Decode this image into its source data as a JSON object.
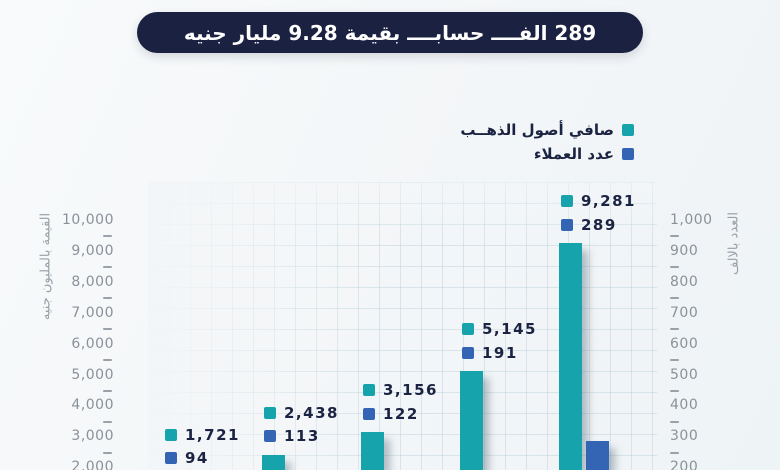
{
  "banner": {
    "title": "289 الفــــ حسابــــ بقيمة 9.28 مليار جنيه"
  },
  "legend": {
    "items": [
      {
        "label": "صافي أصول الذهــب",
        "color": "#17a3ac"
      },
      {
        "label": "عدد العملاء",
        "color": "#3465b5"
      }
    ]
  },
  "colors": {
    "teal": "#17a3ac",
    "blue": "#3465b5",
    "navy_banner": "#1b2140",
    "label_text": "#1b2342",
    "axis_text": "#8b9199",
    "background": "#f3f6f8"
  },
  "chart_data": {
    "type": "bar",
    "title": "289 الفــــ حسابــــ بقيمة 9.28 مليار جنيه",
    "series": [
      {
        "name": "صافي أصول الذهــب",
        "axis": "left",
        "color": "#17a3ac",
        "values": [
          1721,
          2438,
          3156,
          5145,
          9281
        ],
        "value_labels": [
          "1,721",
          "2,438",
          "3,156",
          "5,145",
          "9,281"
        ]
      },
      {
        "name": "عدد العملاء",
        "axis": "right",
        "color": "#3465b5",
        "values": [
          94,
          113,
          122,
          191,
          289
        ],
        "value_labels": [
          "94",
          "113",
          "122",
          "191",
          "289"
        ]
      }
    ],
    "left_axis": {
      "title": "القيمة بالمليون جنيه",
      "max": 10000,
      "tick_step": 1000,
      "tick_labels": [
        "10,000",
        "9,000",
        "8,000",
        "7,000",
        "6,000",
        "5,000",
        "4,000",
        "3,000",
        "2,000"
      ]
    },
    "right_axis": {
      "title": "العدد بالالف",
      "max": 1000,
      "tick_step": 100,
      "tick_labels": [
        "1,000",
        "900",
        "800",
        "700",
        "600",
        "500",
        "400",
        "300",
        "200"
      ]
    },
    "layout": {
      "grid": true,
      "legend_position": "top-right",
      "bars_per_group": 2,
      "x_axis_labels_visible": false,
      "bottom_cropped": true
    }
  }
}
